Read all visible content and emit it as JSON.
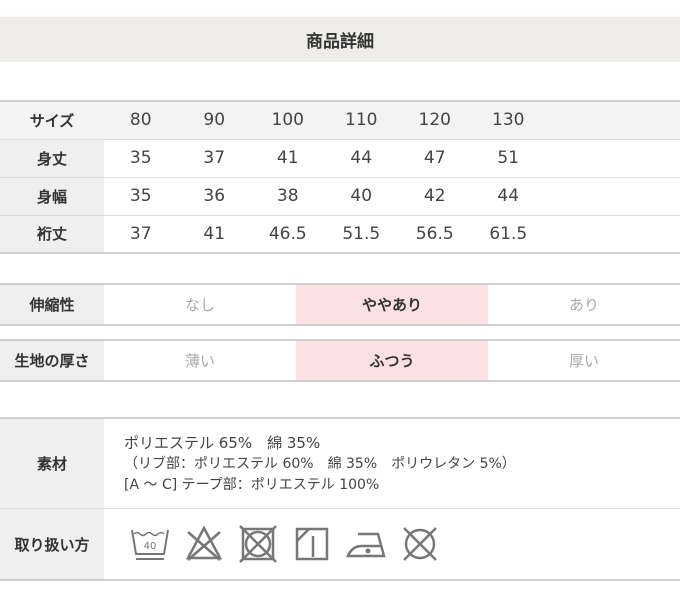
{
  "title": "商品詳細",
  "size_table": {
    "header": {
      "label": "サイズ",
      "values": [
        "80",
        "90",
        "100",
        "110",
        "120",
        "130"
      ]
    },
    "rows": [
      {
        "label": "身丈",
        "values": [
          "35",
          "37",
          "41",
          "44",
          "47",
          "51"
        ]
      },
      {
        "label": "身幅",
        "values": [
          "35",
          "36",
          "38",
          "40",
          "42",
          "44"
        ]
      },
      {
        "label": "裄丈",
        "values": [
          "37",
          "41",
          "46.5",
          "51.5",
          "56.5",
          "61.5"
        ]
      }
    ]
  },
  "stretch": {
    "label": "伸縮性",
    "options": [
      "なし",
      "ややあり",
      "あり"
    ],
    "selected": "ややあり"
  },
  "thickness": {
    "label": "生地の厚さ",
    "options": [
      "薄い",
      "ふつう",
      "厚い"
    ],
    "selected": "ふつう"
  },
  "material": {
    "label": "素材",
    "lines": [
      "ポリエステル 65%　綿 35%",
      "（リブ部：ポリエステル 60%　綿 35%　ポリウレタン 5%）",
      "[A ～ C] テープ部：ポリエステル 100%"
    ]
  },
  "care": {
    "label": "取り扱い方",
    "icons": [
      "wash-40-icon",
      "no-bleach-icon",
      "no-tumble-dry-icon",
      "line-dry-icon",
      "iron-low-icon",
      "no-dry-clean-icon"
    ],
    "wash_temp": "40"
  },
  "colors": {
    "highlight": "#fbe1e3",
    "label_bg": "#efefef",
    "title_bg": "#efedea"
  }
}
